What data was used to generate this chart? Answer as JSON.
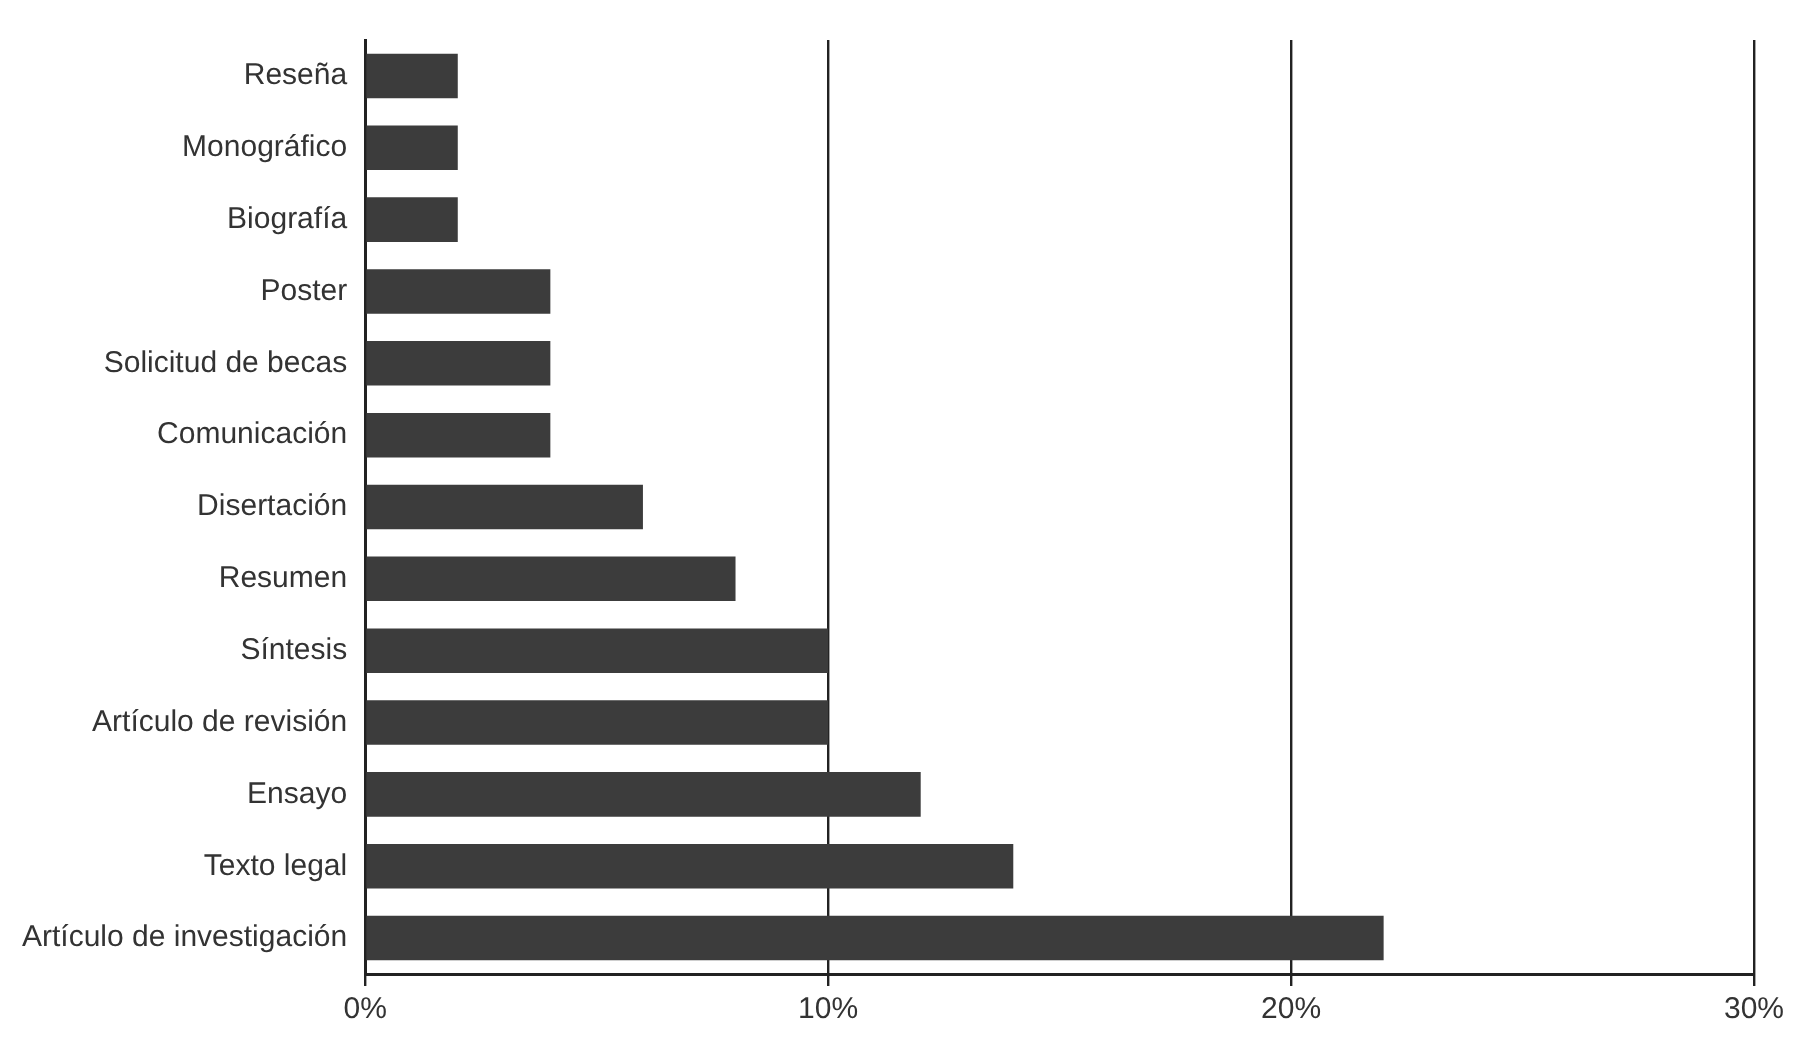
{
  "chart_data": {
    "type": "bar",
    "orientation": "horizontal",
    "categories": [
      "Reseña",
      "Monográfico",
      "Biografía",
      "Poster",
      "Solicitud de becas",
      "Comunicación",
      "Disertación",
      "Resumen",
      "Síntesis",
      "Artículo de revisión",
      "Ensayo",
      "Texto legal",
      "Artículo de investigación"
    ],
    "values": [
      2,
      2,
      2,
      4,
      4,
      4,
      6,
      8,
      10,
      10,
      12,
      14,
      22
    ],
    "color": "#3c3c3c",
    "xlim": [
      0,
      30
    ],
    "xticks": [
      {
        "value": 0,
        "label": "0%"
      },
      {
        "value": 10,
        "label": "10%"
      },
      {
        "value": 20,
        "label": "20%"
      },
      {
        "value": 30,
        "label": "30%"
      }
    ],
    "grid": "x",
    "legend": false
  }
}
